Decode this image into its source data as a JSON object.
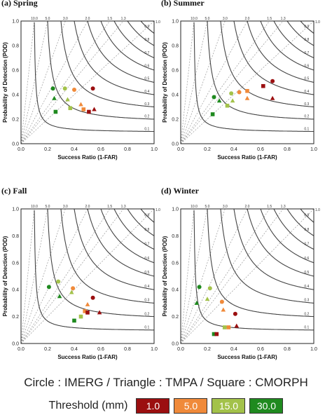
{
  "panels_common": {
    "xlabel": "Success Ratio (1-FAR)",
    "ylabel": "Probability of Detection (POD)",
    "ticks": [
      "0.0",
      "0.2",
      "0.4",
      "0.6",
      "0.8",
      "1.0"
    ],
    "bias_labels": [
      "10.0",
      "5.0",
      "3.0",
      "2.0",
      "1.5",
      "1.3",
      "1.0"
    ],
    "csi_labels": [
      "0.9",
      "0.8",
      "0.7",
      "0.6",
      "0.5",
      "0.4",
      "0.3",
      "0.2",
      "0.1"
    ]
  },
  "chart_data": [
    {
      "type": "scatter",
      "title": "(a) Spring",
      "xlabel": "Success Ratio (1-FAR)",
      "ylabel": "Probability of Detection (POD)",
      "xlim": [
        0,
        1
      ],
      "ylim": [
        0,
        1
      ],
      "points": [
        {
          "product": "IMERG",
          "threshold": "30.0",
          "x": 0.24,
          "y": 0.45
        },
        {
          "product": "IMERG",
          "threshold": "15.0",
          "x": 0.33,
          "y": 0.45
        },
        {
          "product": "IMERG",
          "threshold": "5.0",
          "x": 0.4,
          "y": 0.44
        },
        {
          "product": "IMERG",
          "threshold": "1.0",
          "x": 0.54,
          "y": 0.45
        },
        {
          "product": "TMPA",
          "threshold": "30.0",
          "x": 0.25,
          "y": 0.37
        },
        {
          "product": "TMPA",
          "threshold": "15.0",
          "x": 0.35,
          "y": 0.36
        },
        {
          "product": "TMPA",
          "threshold": "5.0",
          "x": 0.45,
          "y": 0.32
        },
        {
          "product": "TMPA",
          "threshold": "1.0",
          "x": 0.55,
          "y": 0.28
        },
        {
          "product": "CMORPH",
          "threshold": "30.0",
          "x": 0.26,
          "y": 0.26
        },
        {
          "product": "CMORPH",
          "threshold": "15.0",
          "x": 0.37,
          "y": 0.29
        },
        {
          "product": "CMORPH",
          "threshold": "5.0",
          "x": 0.47,
          "y": 0.28
        },
        {
          "product": "CMORPH",
          "threshold": "1.0",
          "x": 0.51,
          "y": 0.26
        }
      ]
    },
    {
      "type": "scatter",
      "title": "(b) Summer",
      "xlabel": "Success Ratio (1-FAR)",
      "ylabel": "Probability of Detection (POD)",
      "xlim": [
        0,
        1
      ],
      "ylim": [
        0,
        1
      ],
      "points": [
        {
          "product": "IMERG",
          "threshold": "30.0",
          "x": 0.25,
          "y": 0.38
        },
        {
          "product": "IMERG",
          "threshold": "15.0",
          "x": 0.38,
          "y": 0.41
        },
        {
          "product": "IMERG",
          "threshold": "5.0",
          "x": 0.44,
          "y": 0.42
        },
        {
          "product": "IMERG",
          "threshold": "1.0",
          "x": 0.69,
          "y": 0.51
        },
        {
          "product": "TMPA",
          "threshold": "30.0",
          "x": 0.29,
          "y": 0.35
        },
        {
          "product": "TMPA",
          "threshold": "15.0",
          "x": 0.39,
          "y": 0.35
        },
        {
          "product": "TMPA",
          "threshold": "5.0",
          "x": 0.5,
          "y": 0.37
        },
        {
          "product": "TMPA",
          "threshold": "1.0",
          "x": 0.69,
          "y": 0.37
        },
        {
          "product": "CMORPH",
          "threshold": "30.0",
          "x": 0.24,
          "y": 0.24
        },
        {
          "product": "CMORPH",
          "threshold": "15.0",
          "x": 0.35,
          "y": 0.31
        },
        {
          "product": "CMORPH",
          "threshold": "5.0",
          "x": 0.5,
          "y": 0.43
        },
        {
          "product": "CMORPH",
          "threshold": "1.0",
          "x": 0.62,
          "y": 0.47
        }
      ]
    },
    {
      "type": "scatter",
      "title": "(c) Fall",
      "xlabel": "Success Ratio (1-FAR)",
      "ylabel": "Probability of Detection (POD)",
      "xlim": [
        0,
        1
      ],
      "ylim": [
        0,
        1
      ],
      "points": [
        {
          "product": "IMERG",
          "threshold": "30.0",
          "x": 0.21,
          "y": 0.42
        },
        {
          "product": "IMERG",
          "threshold": "15.0",
          "x": 0.28,
          "y": 0.46
        },
        {
          "product": "IMERG",
          "threshold": "5.0",
          "x": 0.39,
          "y": 0.41
        },
        {
          "product": "IMERG",
          "threshold": "1.0",
          "x": 0.54,
          "y": 0.34
        },
        {
          "product": "TMPA",
          "threshold": "30.0",
          "x": 0.29,
          "y": 0.35
        },
        {
          "product": "TMPA",
          "threshold": "15.0",
          "x": 0.38,
          "y": 0.38
        },
        {
          "product": "TMPA",
          "threshold": "5.0",
          "x": 0.5,
          "y": 0.29
        },
        {
          "product": "TMPA",
          "threshold": "1.0",
          "x": 0.59,
          "y": 0.23
        },
        {
          "product": "CMORPH",
          "threshold": "30.0",
          "x": 0.4,
          "y": 0.17
        },
        {
          "product": "CMORPH",
          "threshold": "15.0",
          "x": 0.45,
          "y": 0.2
        },
        {
          "product": "CMORPH",
          "threshold": "5.0",
          "x": 0.48,
          "y": 0.24
        },
        {
          "product": "CMORPH",
          "threshold": "1.0",
          "x": 0.5,
          "y": 0.23
        }
      ]
    },
    {
      "type": "scatter",
      "title": "(d) Winter",
      "xlabel": "Success Ratio (1-FAR)",
      "ylabel": "Probability of Detection (POD)",
      "xlim": [
        0,
        1
      ],
      "ylim": [
        0,
        1
      ],
      "points": [
        {
          "product": "IMERG",
          "threshold": "30.0",
          "x": 0.14,
          "y": 0.42
        },
        {
          "product": "IMERG",
          "threshold": "15.0",
          "x": 0.22,
          "y": 0.41
        },
        {
          "product": "IMERG",
          "threshold": "5.0",
          "x": 0.31,
          "y": 0.31
        },
        {
          "product": "IMERG",
          "threshold": "1.0",
          "x": 0.41,
          "y": 0.22
        },
        {
          "product": "TMPA",
          "threshold": "30.0",
          "x": 0.12,
          "y": 0.3
        },
        {
          "product": "TMPA",
          "threshold": "15.0",
          "x": 0.2,
          "y": 0.33
        },
        {
          "product": "TMPA",
          "threshold": "5.0",
          "x": 0.32,
          "y": 0.25
        },
        {
          "product": "TMPA",
          "threshold": "1.0",
          "x": 0.42,
          "y": 0.13
        },
        {
          "product": "CMORPH",
          "threshold": "30.0",
          "x": 0.25,
          "y": 0.07
        },
        {
          "product": "CMORPH",
          "threshold": "15.0",
          "x": 0.33,
          "y": 0.12
        },
        {
          "product": "CMORPH",
          "threshold": "5.0",
          "x": 0.36,
          "y": 0.12
        },
        {
          "product": "CMORPH",
          "threshold": "1.0",
          "x": 0.27,
          "y": 0.07
        }
      ]
    }
  ],
  "legend": {
    "shapes_text": "Circle : IMERG  /  Triangle : TMPA  /  Square : CMORPH",
    "threshold_label": "Threshold (mm)",
    "thresholds": [
      {
        "value": "1.0",
        "color": "#9b0f10"
      },
      {
        "value": "5.0",
        "color": "#f08a3a"
      },
      {
        "value": "15.0",
        "color": "#a3c24a"
      },
      {
        "value": "30.0",
        "color": "#1f8a1f"
      }
    ]
  },
  "product_shapes": {
    "IMERG": "circle",
    "TMPA": "triangle",
    "CMORPH": "square"
  }
}
